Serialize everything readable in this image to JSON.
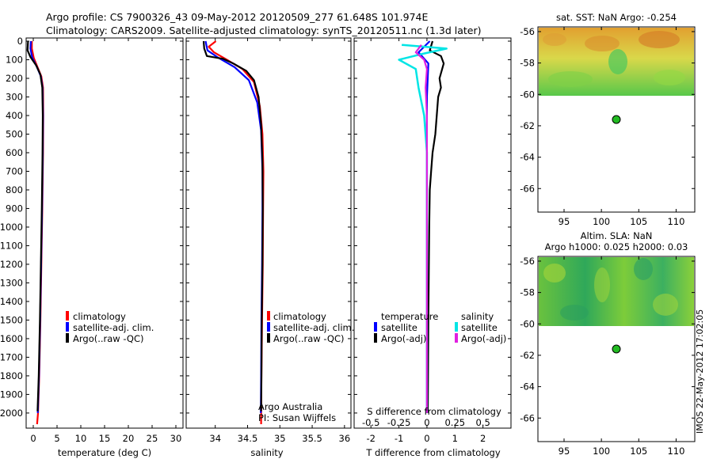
{
  "header": {
    "line1": "Argo profile: CS 7900326_43 09-May-2012 20120509_277 61.648S 101.974E",
    "line2": "Climatology: CARS2009. Satellite-adjusted climatology: synTS_20120511.nc (1.3d later)"
  },
  "colors": {
    "climatology": "#ff0000",
    "satellite": "#0000ff",
    "argo": "#000000",
    "sal_sat": "#00e5e5",
    "sal_argo": "#e020e0",
    "marker": "#22bb22"
  },
  "depth_ticks": [
    "0",
    "100",
    "200",
    "300",
    "400",
    "500",
    "600",
    "700",
    "800",
    "900",
    "1000",
    "1100",
    "1200",
    "1300",
    "1400",
    "1500",
    "1600",
    "1700",
    "1800",
    "1900",
    "2000"
  ],
  "legend": {
    "climatology": "climatology",
    "satellite": "satellite-adj. clim.",
    "argo": "Argo(..raw -QC)"
  },
  "credit": {
    "line1": "Argo Australia",
    "line2": "PI: Susan Wijffels"
  },
  "diff_legend": {
    "temp_title": "temperature",
    "temp_sat": "satellite",
    "temp_argo": "Argo(-adj)",
    "sal_title": "salinity",
    "sal_sat": "satellite",
    "sal_argo": "Argo(-adj)"
  },
  "side_label": "IMOS 22-May-2012 17:02:05",
  "chart_data": [
    {
      "type": "line",
      "xlabel": "temperature (deg C)",
      "ylabel": "",
      "xlim": [
        -1.5,
        31.5
      ],
      "ylim": [
        2060,
        0
      ],
      "x_ticks": [
        "0",
        "5",
        "10",
        "15",
        "20",
        "25",
        "30"
      ],
      "series": [
        {
          "name": "climatology",
          "points": [
            [
              -0.3,
              0
            ],
            [
              -0.3,
              40
            ],
            [
              0.1,
              90
            ],
            [
              0.9,
              140
            ],
            [
              1.7,
              190
            ],
            [
              2.05,
              250
            ],
            [
              2.1,
              400
            ],
            [
              2.05,
              600
            ],
            [
              1.9,
              900
            ],
            [
              1.7,
              1200
            ],
            [
              1.5,
              1500
            ],
            [
              1.25,
              1800
            ],
            [
              1.0,
              2000
            ],
            [
              0.8,
              2060
            ]
          ]
        },
        {
          "name": "satellite-adj. clim.",
          "points": [
            [
              -0.5,
              0
            ],
            [
              -0.6,
              40
            ],
            [
              -0.2,
              90
            ],
            [
              0.8,
              140
            ],
            [
              1.6,
              190
            ],
            [
              1.95,
              250
            ],
            [
              2.05,
              400
            ],
            [
              2.0,
              600
            ],
            [
              1.85,
              900
            ],
            [
              1.65,
              1200
            ],
            [
              1.45,
              1500
            ],
            [
              1.2,
              1800
            ],
            [
              0.95,
              2000
            ]
          ]
        },
        {
          "name": "Argo(..raw -QC)",
          "points": [
            [
              -1.1,
              0
            ],
            [
              -1.2,
              50
            ],
            [
              -0.6,
              85
            ],
            [
              0.6,
              130
            ],
            [
              1.5,
              180
            ],
            [
              1.9,
              250
            ],
            [
              2.0,
              400
            ],
            [
              1.95,
              600
            ],
            [
              1.8,
              900
            ],
            [
              1.6,
              1200
            ],
            [
              1.4,
              1500
            ],
            [
              1.15,
              1800
            ],
            [
              0.9,
              1990
            ]
          ]
        }
      ]
    },
    {
      "type": "line",
      "xlabel": "salinity",
      "ylabel": "",
      "xlim": [
        33.55,
        36.1
      ],
      "ylim": [
        2060,
        0
      ],
      "x_ticks": [
        "34",
        "34.5",
        "35",
        "35.5",
        "36"
      ],
      "series": [
        {
          "name": "climatology",
          "points": [
            [
              34.01,
              0
            ],
            [
              33.9,
              30
            ],
            [
              33.98,
              60
            ],
            [
              34.18,
              100
            ],
            [
              34.42,
              150
            ],
            [
              34.6,
              220
            ],
            [
              34.69,
              350
            ],
            [
              34.73,
              500
            ],
            [
              34.745,
              700
            ],
            [
              34.74,
              900
            ],
            [
              34.735,
              1200
            ],
            [
              34.725,
              1500
            ],
            [
              34.715,
              1800
            ],
            [
              34.71,
              2060
            ]
          ]
        },
        {
          "name": "satellite-adj. clim.",
          "points": [
            [
              33.85,
              0
            ],
            [
              33.88,
              50
            ],
            [
              34.05,
              90
            ],
            [
              34.3,
              140
            ],
            [
              34.52,
              210
            ],
            [
              34.65,
              330
            ],
            [
              34.71,
              480
            ],
            [
              34.73,
              700
            ],
            [
              34.73,
              900
            ],
            [
              34.725,
              1200
            ],
            [
              34.715,
              1500
            ],
            [
              34.71,
              1800
            ],
            [
              34.705,
              2000
            ]
          ]
        },
        {
          "name": "Argo(..raw -QC)",
          "points": [
            [
              33.82,
              0
            ],
            [
              33.83,
              40
            ],
            [
              33.87,
              80
            ],
            [
              34.12,
              95
            ],
            [
              34.28,
              120
            ],
            [
              34.48,
              160
            ],
            [
              34.6,
              210
            ],
            [
              34.67,
              300
            ],
            [
              34.71,
              450
            ],
            [
              34.73,
              650
            ],
            [
              34.735,
              900
            ],
            [
              34.73,
              1200
            ],
            [
              34.72,
              1500
            ],
            [
              34.715,
              1800
            ],
            [
              34.71,
              1990
            ]
          ]
        }
      ]
    },
    {
      "type": "line",
      "xlabel": "T difference from climatology",
      "secondary_xlabel": "S difference from climatology",
      "xlim": [
        -2.6,
        3.0
      ],
      "ylim": [
        2060,
        0
      ],
      "x_ticks": [
        "-2",
        "-1",
        "0",
        "1",
        "2"
      ],
      "secondary_x_ticks": [
        "-0.5",
        "-0.25",
        "0",
        "0.25",
        "0.5"
      ],
      "series": [
        {
          "name": "temperature satellite",
          "points": [
            [
              0.1,
              0
            ],
            [
              -0.3,
              60
            ],
            [
              0.05,
              120
            ],
            [
              0.0,
              300
            ],
            [
              0.0,
              2000
            ]
          ]
        },
        {
          "name": "temperature Argo(-adj)",
          "points": [
            [
              0.2,
              0
            ],
            [
              0.1,
              50
            ],
            [
              0.5,
              80
            ],
            [
              0.6,
              120
            ],
            [
              0.45,
              200
            ],
            [
              0.5,
              250
            ],
            [
              0.4,
              300
            ],
            [
              0.35,
              400
            ],
            [
              0.3,
              500
            ],
            [
              0.2,
              600
            ],
            [
              0.15,
              700
            ],
            [
              0.1,
              800
            ],
            [
              0.08,
              1000
            ],
            [
              0.05,
              1500
            ],
            [
              0.03,
              2000
            ]
          ]
        },
        {
          "name": "salinity satellite",
          "points": [
            [
              -0.9,
              20
            ],
            [
              0.7,
              40
            ],
            [
              -0.2,
              70
            ],
            [
              -1.0,
              100
            ],
            [
              -0.4,
              150
            ],
            [
              -0.3,
              250
            ],
            [
              -0.1,
              400
            ],
            [
              0.0,
              600
            ],
            [
              0.0,
              2000
            ]
          ]
        },
        {
          "name": "salinity Argo(-adj)",
          "points": [
            [
              -0.2,
              20
            ],
            [
              -0.4,
              60
            ],
            [
              -0.1,
              100
            ],
            [
              0.0,
              150
            ],
            [
              -0.05,
              250
            ],
            [
              0.0,
              400
            ],
            [
              0.0,
              2000
            ]
          ]
        }
      ]
    },
    {
      "type": "heatmap",
      "title": "sat. SST: NaN Argo: -0.254",
      "x_ticks": [
        "95",
        "100",
        "105",
        "110"
      ],
      "y_ticks": [
        "-56",
        "-58",
        "-60",
        "-62",
        "-64",
        "-66"
      ],
      "xlim": [
        91.5,
        112.5
      ],
      "ylim": [
        -67.5,
        -55.7
      ],
      "marker": [
        102,
        -61.6
      ]
    },
    {
      "type": "heatmap",
      "title": "Altim. SLA: NaN",
      "subtitle": "Argo h1000: 0.025 h2000: 0.03",
      "x_ticks": [
        "95",
        "100",
        "105",
        "110"
      ],
      "y_ticks": [
        "-56",
        "-58",
        "-60",
        "-62",
        "-64",
        "-66"
      ],
      "xlim": [
        91.5,
        112.5
      ],
      "ylim": [
        -67.5,
        -55.7
      ],
      "marker": [
        102,
        -61.6
      ]
    }
  ]
}
